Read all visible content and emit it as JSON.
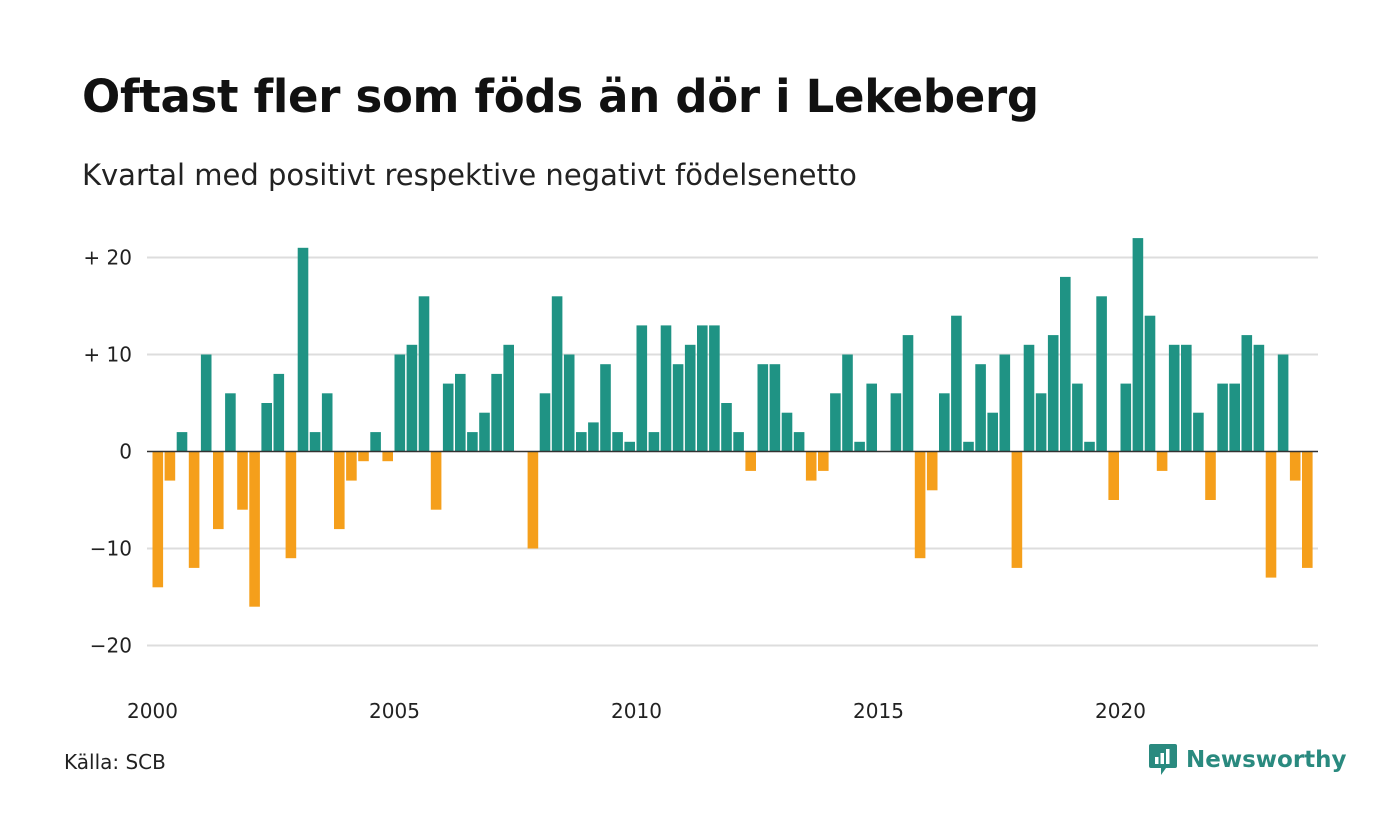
{
  "title": "Oftast fler som föds än dör i Lekeberg",
  "subtitle": "Kvartal med positivt respektive negativt födelsenetto",
  "source": "Källa: SCB",
  "logo_text": "Newsworthy",
  "colors": {
    "positive": "#1f9384",
    "negative": "#f59f1b",
    "grid": "#dddddd",
    "logo": "#2a8a7f"
  },
  "chart_data": {
    "type": "bar",
    "x_start": "2000 Q1",
    "x_end": "2024 Q1",
    "ylim": [
      -20,
      22
    ],
    "y_ticks": [
      20,
      10,
      0,
      -10,
      -20
    ],
    "y_tick_labels": [
      "+ 20",
      "+ 10",
      "0",
      "−10",
      "−20"
    ],
    "x_ticks": [
      2000,
      2005,
      2010,
      2015,
      2020
    ],
    "x_tick_labels": [
      "2000",
      "2005",
      "2010",
      "2015",
      "2020"
    ],
    "values": [
      -14,
      -3,
      2,
      -12,
      10,
      -8,
      6,
      -6,
      -16,
      5,
      8,
      -11,
      21,
      2,
      6,
      -8,
      -3,
      -1,
      2,
      -1,
      10,
      11,
      16,
      -6,
      7,
      8,
      2,
      4,
      8,
      11,
      0,
      -10,
      6,
      16,
      10,
      2,
      3,
      9,
      2,
      1,
      13,
      2,
      13,
      9,
      11,
      13,
      13,
      5,
      2,
      -2,
      9,
      9,
      4,
      2,
      -3,
      -2,
      6,
      10,
      1,
      7,
      0,
      6,
      12,
      -11,
      -4,
      6,
      14,
      1,
      9,
      4,
      10,
      -12,
      11,
      6,
      12,
      18,
      7,
      1,
      16,
      -5,
      7,
      22,
      14,
      -2,
      11,
      11,
      4,
      -5,
      7,
      7,
      12,
      11,
      -13,
      10,
      -3,
      -12
    ]
  }
}
